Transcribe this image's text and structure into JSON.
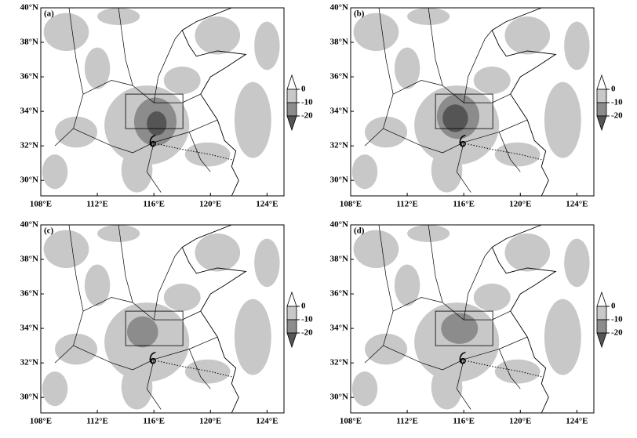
{
  "panels": [
    {
      "label": "(a)"
    },
    {
      "label": "(b)"
    },
    {
      "label": "(c)"
    },
    {
      "label": "(d)"
    }
  ],
  "axes": {
    "xlim": [
      108,
      125.2
    ],
    "ylim": [
      29.1,
      40
    ],
    "xticks": [
      {
        "value": 108,
        "label": "108°E"
      },
      {
        "value": 112,
        "label": "112°E"
      },
      {
        "value": 116,
        "label": "116°E"
      },
      {
        "value": 120,
        "label": "120°E"
      },
      {
        "value": 124,
        "label": "124°E"
      }
    ],
    "yticks": [
      {
        "value": 30,
        "label": "30°N"
      },
      {
        "value": 32,
        "label": "32°N"
      },
      {
        "value": 34,
        "label": "34°N"
      },
      {
        "value": 36,
        "label": "36°N"
      },
      {
        "value": 38,
        "label": "38°N"
      },
      {
        "value": 40,
        "label": "40°N"
      }
    ]
  },
  "colorbar": {
    "ticks": [
      0,
      -10,
      -20
    ]
  }
}
